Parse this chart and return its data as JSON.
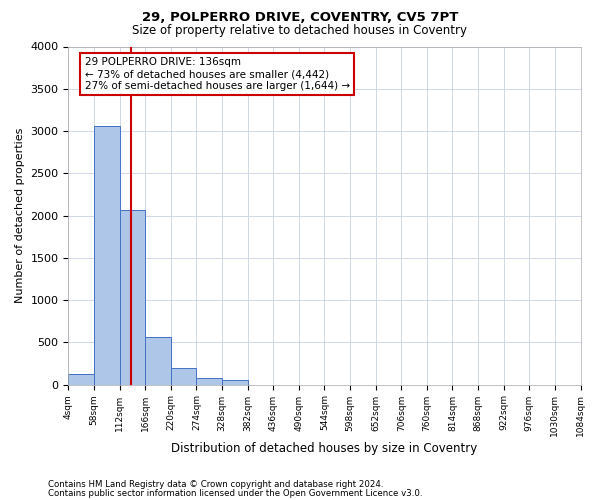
{
  "title1": "29, POLPERRO DRIVE, COVENTRY, CV5 7PT",
  "title2": "Size of property relative to detached houses in Coventry",
  "xlabel": "Distribution of detached houses by size in Coventry",
  "ylabel": "Number of detached properties",
  "footer1": "Contains HM Land Registry data © Crown copyright and database right 2024.",
  "footer2": "Contains public sector information licensed under the Open Government Licence v3.0.",
  "annotation_line1": "29 POLPERRO DRIVE: 136sqm",
  "annotation_line2": "← 73% of detached houses are smaller (4,442)",
  "annotation_line3": "27% of semi-detached houses are larger (1,644) →",
  "property_size": 136,
  "bar_edges": [
    4,
    58,
    112,
    166,
    220,
    274,
    328,
    382,
    436,
    490,
    544,
    598,
    652,
    706,
    760,
    814,
    868,
    922,
    976,
    1030,
    1084
  ],
  "bar_heights": [
    120,
    3060,
    2070,
    560,
    200,
    75,
    50,
    0,
    0,
    0,
    0,
    0,
    0,
    0,
    0,
    0,
    0,
    0,
    0,
    0
  ],
  "bar_color": "#aec6e8",
  "bar_edge_color": "#4472c4",
  "line_color": "#cc0000",
  "box_edge_color": "#cc0000",
  "grid_color": "#d0d8e8",
  "background_color": "#ffffff",
  "ylim": [
    0,
    4000
  ],
  "yticks": [
    0,
    500,
    1000,
    1500,
    2000,
    2500,
    3000,
    3500,
    4000
  ]
}
